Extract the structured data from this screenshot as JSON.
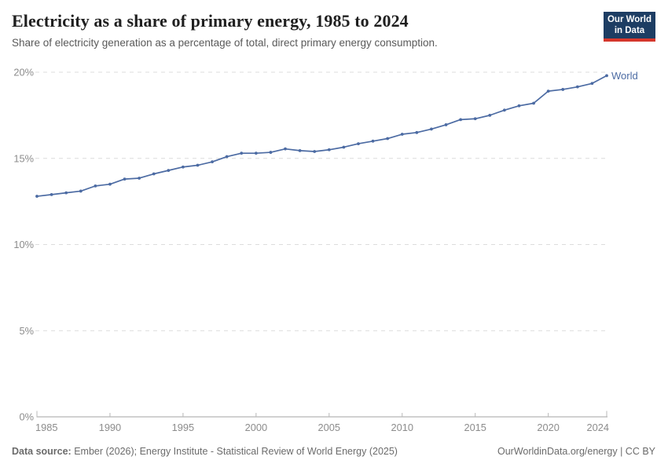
{
  "header": {
    "title": "Electricity as a share of primary energy, 1985 to 2024",
    "subtitle": "Share of electricity generation as a percentage of total, direct primary energy consumption.",
    "logo": {
      "line1": "Our World",
      "line2": "in Data",
      "bg_color": "#1d3d63",
      "accent_color": "#d6372c"
    }
  },
  "chart_data": {
    "type": "line",
    "title": "Electricity as a share of primary energy, 1985 to 2024",
    "xlabel": "",
    "ylabel": "",
    "xlim": [
      1985,
      2024
    ],
    "ylim": [
      0,
      20
    ],
    "grid": "horizontal-dashed",
    "legend_position": "end-of-line",
    "x_ticks": [
      1985,
      1990,
      1995,
      2000,
      2005,
      2010,
      2015,
      2020,
      2024
    ],
    "y_ticks": [
      {
        "value": 0,
        "label": "0%"
      },
      {
        "value": 5,
        "label": "5%"
      },
      {
        "value": 10,
        "label": "10%"
      },
      {
        "value": 15,
        "label": "15%"
      },
      {
        "value": 20,
        "label": "20%"
      }
    ],
    "series": [
      {
        "name": "World",
        "color": "#4c6ba3",
        "x": [
          1985,
          1986,
          1987,
          1988,
          1989,
          1990,
          1991,
          1992,
          1993,
          1994,
          1995,
          1996,
          1997,
          1998,
          1999,
          2000,
          2001,
          2002,
          2003,
          2004,
          2005,
          2006,
          2007,
          2008,
          2009,
          2010,
          2011,
          2012,
          2013,
          2014,
          2015,
          2016,
          2017,
          2018,
          2019,
          2020,
          2021,
          2022,
          2023,
          2024
        ],
        "values": [
          12.8,
          12.9,
          13.0,
          13.1,
          13.4,
          13.5,
          13.8,
          13.85,
          14.1,
          14.3,
          14.5,
          14.6,
          14.8,
          15.1,
          15.3,
          15.3,
          15.35,
          15.55,
          15.45,
          15.4,
          15.5,
          15.65,
          15.85,
          16.0,
          16.15,
          16.4,
          16.5,
          16.7,
          16.95,
          17.25,
          17.3,
          17.5,
          17.8,
          18.05,
          18.2,
          18.9,
          19.0,
          19.15,
          19.35,
          19.8
        ]
      }
    ]
  },
  "footer": {
    "source_label": "Data source:",
    "source_text": "Ember (2026); Energy Institute - Statistical Review of World Energy (2025)",
    "credit": "OurWorldinData.org/energy | CC BY"
  }
}
